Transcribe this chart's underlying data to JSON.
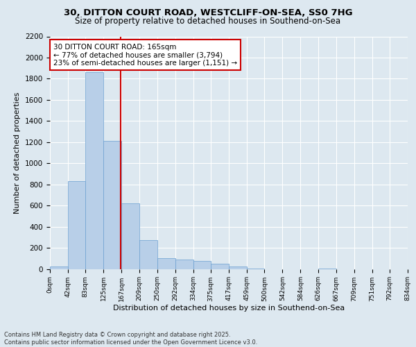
{
  "title1": "30, DITTON COURT ROAD, WESTCLIFF-ON-SEA, SS0 7HG",
  "title2": "Size of property relative to detached houses in Southend-on-Sea",
  "xlabel": "Distribution of detached houses by size in Southend-on-Sea",
  "ylabel": "Number of detached properties",
  "annotation_line1": "30 DITTON COURT ROAD: 165sqm",
  "annotation_line2": "← 77% of detached houses are smaller (3,794)",
  "annotation_line3": "23% of semi-detached houses are larger (1,151) →",
  "footer1": "Contains HM Land Registry data © Crown copyright and database right 2025.",
  "footer2": "Contains public sector information licensed under the Open Government Licence v3.0.",
  "bar_color": "#b8cfe8",
  "bar_edge_color": "#6a9fd0",
  "background_color": "#dde8f0",
  "grid_color": "#ffffff",
  "vline_color": "#cc0000",
  "annotation_box_color": "#cc0000",
  "bins": [
    0,
    42,
    83,
    125,
    167,
    209,
    250,
    292,
    334,
    375,
    417,
    459,
    500,
    542,
    584,
    626,
    667,
    709,
    751,
    792,
    834
  ],
  "counts": [
    20,
    830,
    1860,
    1210,
    620,
    270,
    105,
    90,
    75,
    50,
    25,
    5,
    0,
    0,
    0,
    5,
    0,
    0,
    0,
    0
  ],
  "vline_x": 165,
  "ylim": [
    0,
    2200
  ],
  "yticks": [
    0,
    200,
    400,
    600,
    800,
    1000,
    1200,
    1400,
    1600,
    1800,
    2000,
    2200
  ]
}
